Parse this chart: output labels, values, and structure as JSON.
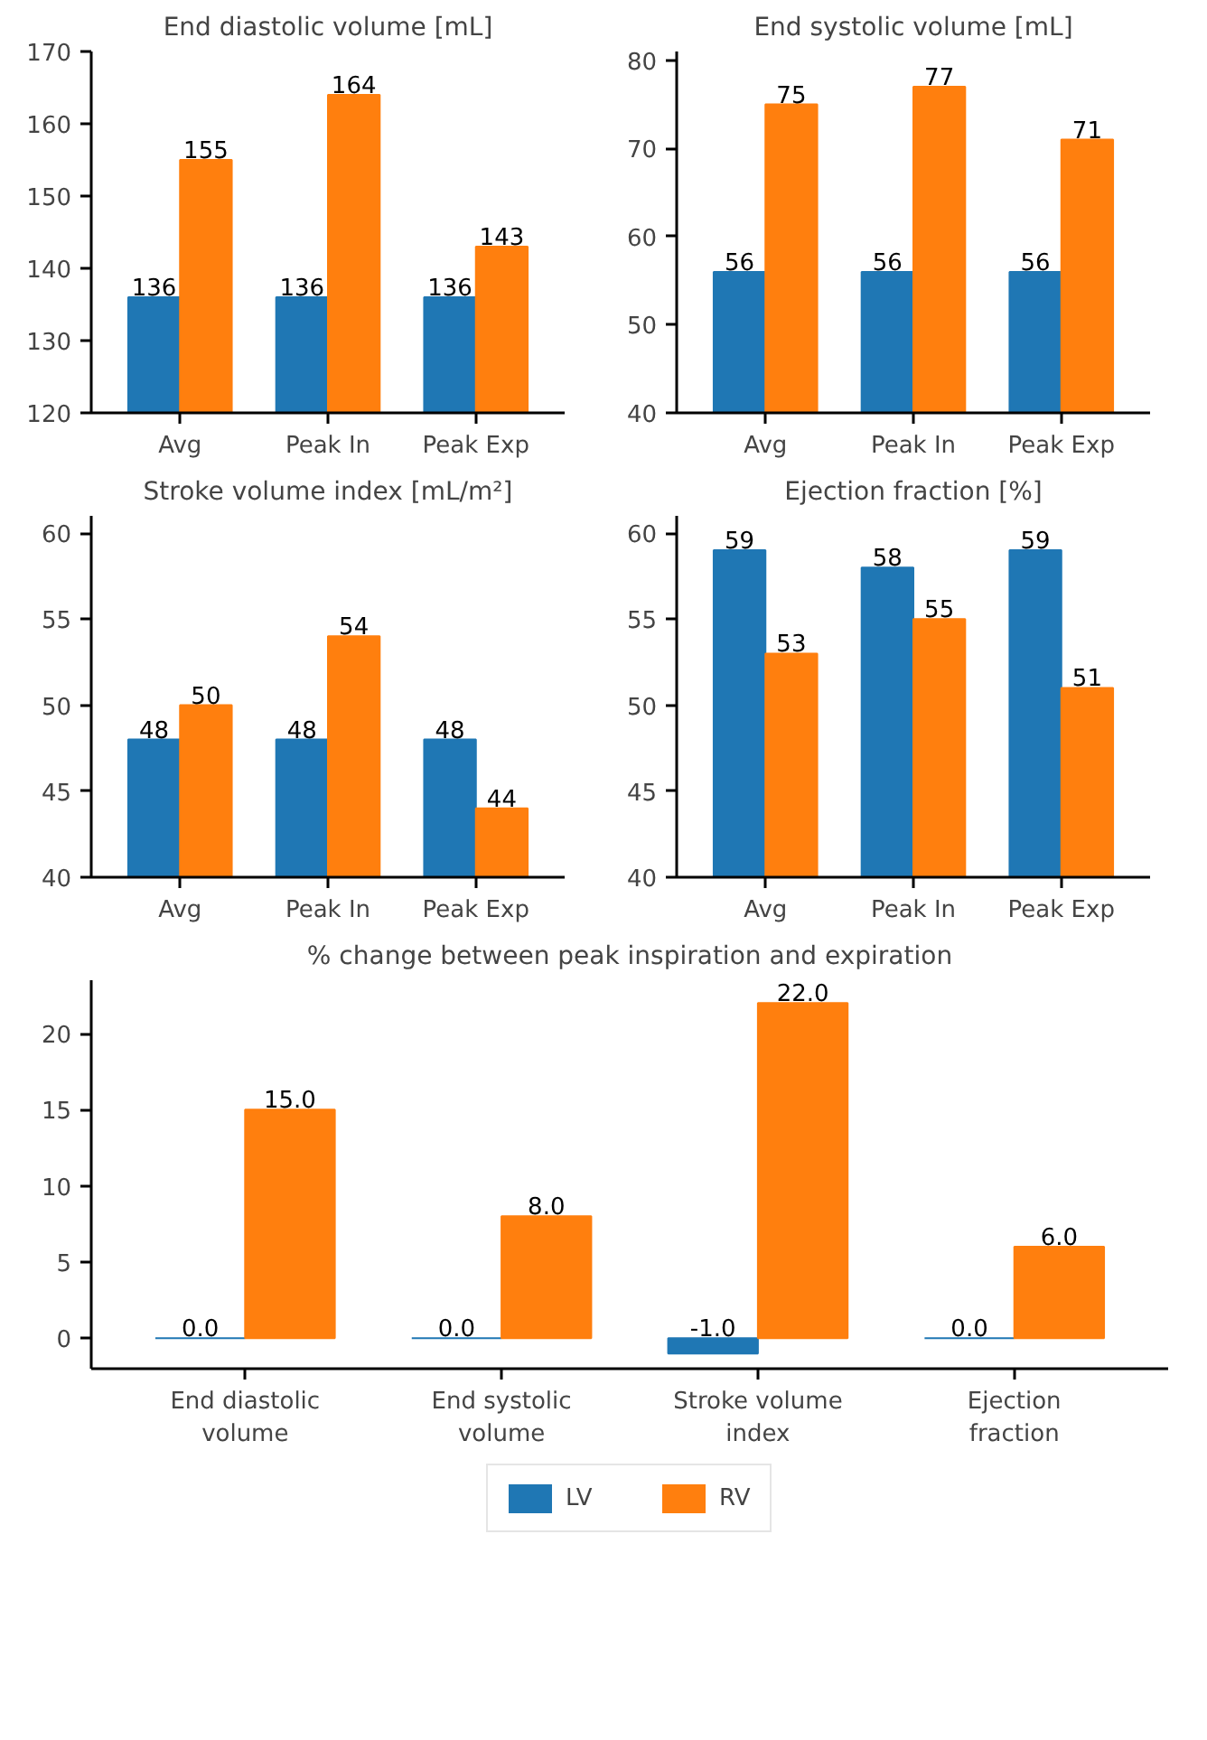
{
  "chart_data": [
    {
      "type": "bar",
      "title": "End diastolic volume [mL]",
      "categories": [
        "Avg",
        "Peak In",
        "Peak Exp"
      ],
      "ylim": [
        120,
        170
      ],
      "yticks": [
        120,
        130,
        140,
        150,
        160,
        170
      ],
      "data_labels": true,
      "grid": false,
      "series": [
        {
          "color": "#1f77b4",
          "values": [
            136,
            136,
            136
          ]
        },
        {
          "color": "#ff7f0e",
          "values": [
            155,
            164,
            143
          ]
        }
      ]
    },
    {
      "type": "bar",
      "title": "End systolic volume [mL]",
      "categories": [
        "Avg",
        "Peak In",
        "Peak Exp"
      ],
      "ylim": [
        40,
        81
      ],
      "yticks": [
        40,
        50,
        60,
        70,
        80
      ],
      "data_labels": true,
      "grid": false,
      "series": [
        {
          "color": "#1f77b4",
          "values": [
            56,
            56,
            56
          ]
        },
        {
          "color": "#ff7f0e",
          "values": [
            75,
            77,
            71
          ]
        }
      ]
    },
    {
      "type": "bar",
      "title": "Stroke volume index [mL/m²]",
      "categories": [
        "Avg",
        "Peak In",
        "Peak Exp"
      ],
      "ylim": [
        40,
        61
      ],
      "yticks": [
        40,
        45,
        50,
        55,
        60
      ],
      "data_labels": true,
      "grid": false,
      "series": [
        {
          "color": "#1f77b4",
          "values": [
            48,
            48,
            48
          ]
        },
        {
          "color": "#ff7f0e",
          "values": [
            50,
            54,
            44
          ]
        }
      ]
    },
    {
      "type": "bar",
      "title": "Ejection fraction [%]",
      "categories": [
        "Avg",
        "Peak In",
        "Peak Exp"
      ],
      "ylim": [
        40,
        61
      ],
      "yticks": [
        40,
        45,
        50,
        55,
        60
      ],
      "data_labels": true,
      "grid": false,
      "series": [
        {
          "color": "#1f77b4",
          "values": [
            59,
            58,
            59
          ]
        },
        {
          "color": "#ff7f0e",
          "values": [
            53,
            55,
            51
          ]
        }
      ]
    },
    {
      "type": "bar",
      "title": "% change between peak inspiration and expiration",
      "categories": [
        "End diastolic\nvolume",
        "End systolic\nvolume",
        "Stroke volume\nindex",
        "Ejection\nfraction"
      ],
      "ylim": [
        -2,
        23.5
      ],
      "yticks": [
        0,
        5,
        10,
        15,
        20
      ],
      "legend": "bottom",
      "grid": false,
      "series": [
        {
          "name": "LV",
          "color": "#1f77b4",
          "values": [
            0,
            0,
            -1,
            0
          ],
          "value_labels": [
            "0.0",
            "0.0",
            "-1.0",
            "0.0"
          ]
        },
        {
          "name": "RV",
          "color": "#ff7f0e",
          "values": [
            15,
            8,
            22,
            6
          ],
          "value_labels": [
            "15.0",
            "8.0",
            "22.0",
            "6.0"
          ]
        }
      ]
    }
  ]
}
